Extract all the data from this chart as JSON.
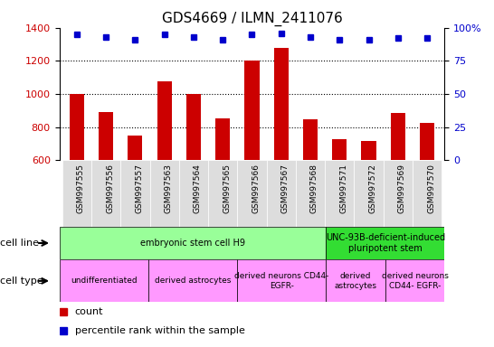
{
  "title": "GDS4669 / ILMN_2411076",
  "samples": [
    "GSM997555",
    "GSM997556",
    "GSM997557",
    "GSM997563",
    "GSM997564",
    "GSM997565",
    "GSM997566",
    "GSM997567",
    "GSM997568",
    "GSM997571",
    "GSM997572",
    "GSM997569",
    "GSM997570"
  ],
  "counts": [
    1000,
    893,
    750,
    1078,
    1000,
    851,
    1200,
    1278,
    848,
    726,
    715,
    884,
    824
  ],
  "percentile_ranks": [
    95,
    93,
    91,
    95,
    93,
    91,
    95,
    96,
    93,
    91,
    91,
    92,
    92
  ],
  "ylim_left": [
    600,
    1400
  ],
  "ylim_right": [
    0,
    100
  ],
  "yticks_left": [
    600,
    800,
    1000,
    1200,
    1400
  ],
  "yticks_right": [
    0,
    25,
    50,
    75,
    100
  ],
  "bar_color": "#cc0000",
  "dot_color": "#0000cc",
  "grid_color": "#000000",
  "cell_line_groups": [
    {
      "label": "embryonic stem cell H9",
      "start": 0,
      "end": 9,
      "color": "#99ff99"
    },
    {
      "label": "UNC-93B-deficient-induced\npluripotent stem",
      "start": 9,
      "end": 13,
      "color": "#33dd33"
    }
  ],
  "cell_type_groups": [
    {
      "label": "undifferentiated",
      "start": 0,
      "end": 3,
      "color": "#ff99ff"
    },
    {
      "label": "derived astrocytes",
      "start": 3,
      "end": 6,
      "color": "#ff99ff"
    },
    {
      "label": "derived neurons CD44-\nEGFR-",
      "start": 6,
      "end": 9,
      "color": "#ff99ff"
    },
    {
      "label": "derived\nastrocytes",
      "start": 9,
      "end": 11,
      "color": "#ff99ff"
    },
    {
      "label": "derived neurons\nCD44- EGFR-",
      "start": 11,
      "end": 13,
      "color": "#ff99ff"
    }
  ],
  "bar_width": 0.5,
  "background_color": "#ffffff",
  "axis_label_color_left": "#cc0000",
  "axis_label_color_right": "#0000cc",
  "xticklabel_bg": "#dddddd",
  "n_samples": 13
}
